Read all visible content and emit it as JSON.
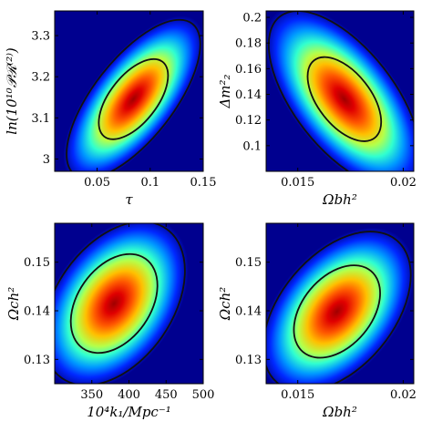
{
  "chart_data": [
    {
      "type": "heatmap",
      "subtype": "2d-marginalized-posterior",
      "xlabel": "τ",
      "ylabel": "ln(10¹⁰𝒫ℛ⁽²⁾)",
      "xlim": [
        0.01,
        0.15
      ],
      "ylim": [
        2.97,
        3.36
      ],
      "xticks": [
        0.05,
        0.1,
        0.15
      ],
      "xtick_labels": [
        "0.05",
        "0.1",
        "0.15"
      ],
      "yticks": [
        3.0,
        3.1,
        3.2,
        3.3
      ],
      "ytick_labels": [
        "3",
        "3.1",
        "3.2",
        "3.3"
      ],
      "peak": {
        "x": 0.075,
        "y": 3.145
      },
      "orientation": "positive",
      "contours": [
        "68%",
        "95%"
      ]
    },
    {
      "type": "heatmap",
      "subtype": "2d-marginalized-posterior",
      "xlabel": "Ωbh²",
      "ylabel": "Δm²₂",
      "xlim": [
        0.0135,
        0.0205
      ],
      "ylim": [
        0.08,
        0.205
      ],
      "xticks": [
        0.015,
        0.02
      ],
      "xtick_labels": [
        "0.015",
        "0.02"
      ],
      "yticks": [
        0.1,
        0.12,
        0.14,
        0.16,
        0.18,
        0.2
      ],
      "ytick_labels": [
        "0.1",
        "0.12",
        "0.14",
        "0.16",
        "0.18",
        "0.2"
      ],
      "peak": {
        "x": 0.0177,
        "y": 0.141
      },
      "orientation": "negative",
      "contours": [
        "68%",
        "95%"
      ]
    },
    {
      "type": "heatmap",
      "subtype": "2d-marginalized-posterior",
      "xlabel": "10⁴k₁/Mpc⁻¹",
      "ylabel": "Ωch²",
      "xlim": [
        300,
        500
      ],
      "ylim": [
        0.125,
        0.158
      ],
      "xticks": [
        350,
        400,
        450,
        500
      ],
      "xtick_labels": [
        "350",
        "400",
        "450",
        "500"
      ],
      "yticks": [
        0.13,
        0.14,
        0.15
      ],
      "ytick_labels": [
        "0.13",
        "0.14",
        "0.15"
      ],
      "peak": {
        "x": 378,
        "y": 0.1405
      },
      "orientation": "positive",
      "contours": [
        "68%",
        "95%"
      ]
    },
    {
      "type": "heatmap",
      "subtype": "2d-marginalized-posterior",
      "xlabel": "Ωbh²",
      "ylabel": "Ωch²",
      "xlim": [
        0.0135,
        0.0205
      ],
      "ylim": [
        0.125,
        0.158
      ],
      "xticks": [
        0.015,
        0.02
      ],
      "xtick_labels": [
        "0.015",
        "0.02"
      ],
      "yticks": [
        0.13,
        0.14,
        0.15
      ],
      "ytick_labels": [
        "0.13",
        "0.14",
        "0.15"
      ],
      "peak": {
        "x": 0.0177,
        "y": 0.14
      },
      "orientation": "positive",
      "contours": [
        "68%",
        "95%"
      ]
    }
  ],
  "colors": {
    "background": "#00008f",
    "colormap": "jet",
    "contour": "#111111"
  }
}
